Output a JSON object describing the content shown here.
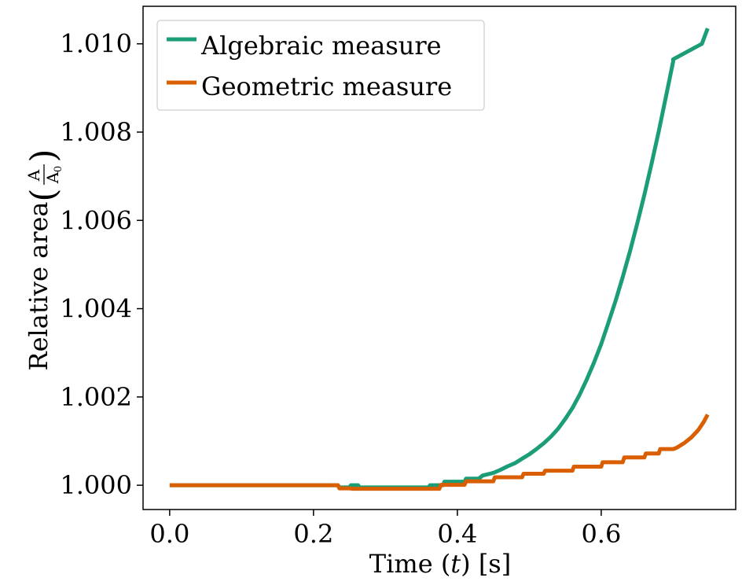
{
  "chart_data": {
    "type": "line",
    "xlabel": "Time (t) [s]",
    "xlabel_parts": {
      "prefix": "Time (",
      "var": "t",
      "suffix": ") [s]"
    },
    "ylabel": "Relative area (A/A0)",
    "ylabel_parts": {
      "prefix": "Relative area ",
      "num": "A",
      "den_base": "A",
      "den_sub": "0"
    },
    "xlim": [
      -0.037,
      0.787
    ],
    "ylim": [
      0.99945,
      1.01085
    ],
    "xticks": [
      0.0,
      0.2,
      0.4,
      0.6
    ],
    "xtick_labels": [
      "0.0",
      "0.2",
      "0.4",
      "0.6"
    ],
    "yticks": [
      1.0,
      1.002,
      1.004,
      1.006,
      1.008,
      1.01
    ],
    "ytick_labels": [
      "1.000",
      "1.002",
      "1.004",
      "1.006",
      "1.008",
      "1.010"
    ],
    "grid": false,
    "legend_position": "top-left",
    "series": [
      {
        "name": "Algebraic measure",
        "color": "#1b9e77",
        "points": [
          [
            0.0,
            1.0
          ],
          [
            0.234,
            1.0
          ],
          [
            0.236,
            0.99995
          ],
          [
            0.25,
            0.99995
          ],
          [
            0.252,
            1.0
          ],
          [
            0.262,
            1.0
          ],
          [
            0.264,
            0.99995
          ],
          [
            0.36,
            0.99995
          ],
          [
            0.362,
            1.0
          ],
          [
            0.38,
            1.0
          ],
          [
            0.382,
            1.00008
          ],
          [
            0.41,
            1.00008
          ],
          [
            0.412,
            1.00015
          ],
          [
            0.43,
            1.00015
          ],
          [
            0.435,
            1.00022
          ],
          [
            0.45,
            1.00028
          ],
          [
            0.46,
            1.00035
          ],
          [
            0.47,
            1.00043
          ],
          [
            0.48,
            1.0005
          ],
          [
            0.49,
            1.0006
          ],
          [
            0.5,
            1.0007
          ],
          [
            0.51,
            1.00082
          ],
          [
            0.52,
            1.00095
          ],
          [
            0.53,
            1.0011
          ],
          [
            0.54,
            1.00128
          ],
          [
            0.55,
            1.0015
          ],
          [
            0.56,
            1.00175
          ],
          [
            0.57,
            1.00205
          ],
          [
            0.58,
            1.0024
          ],
          [
            0.59,
            1.00278
          ],
          [
            0.6,
            1.0032
          ],
          [
            0.61,
            1.00368
          ],
          [
            0.62,
            1.00418
          ],
          [
            0.63,
            1.00472
          ],
          [
            0.64,
            1.0053
          ],
          [
            0.65,
            1.00592
          ],
          [
            0.66,
            1.00658
          ],
          [
            0.67,
            1.00728
          ],
          [
            0.68,
            1.00802
          ],
          [
            0.69,
            1.0088
          ],
          [
            0.7,
            1.0096
          ],
          [
            0.7,
            1.00965
          ],
          [
            0.74,
            1.01
          ],
          [
            0.748,
            1.01035
          ]
        ]
      },
      {
        "name": "Geometric measure",
        "color": "#d95f02",
        "points": [
          [
            0.0,
            1.0
          ],
          [
            0.234,
            1.0
          ],
          [
            0.236,
            0.99993
          ],
          [
            0.25,
            0.99993
          ],
          [
            0.255,
            0.99992
          ],
          [
            0.375,
            0.99992
          ],
          [
            0.377,
            1.00001
          ],
          [
            0.41,
            1.00001
          ],
          [
            0.412,
            1.00009
          ],
          [
            0.45,
            1.00009
          ],
          [
            0.452,
            1.00018
          ],
          [
            0.49,
            1.00018
          ],
          [
            0.492,
            1.00026
          ],
          [
            0.52,
            1.00026
          ],
          [
            0.522,
            1.00033
          ],
          [
            0.56,
            1.00033
          ],
          [
            0.562,
            1.00042
          ],
          [
            0.6,
            1.00042
          ],
          [
            0.602,
            1.00052
          ],
          [
            0.63,
            1.00052
          ],
          [
            0.632,
            1.00063
          ],
          [
            0.66,
            1.00063
          ],
          [
            0.662,
            1.00072
          ],
          [
            0.68,
            1.00072
          ],
          [
            0.682,
            1.00082
          ],
          [
            0.7,
            1.00082
          ],
          [
            0.705,
            1.00085
          ],
          [
            0.715,
            1.00095
          ],
          [
            0.725,
            1.00108
          ],
          [
            0.735,
            1.00125
          ],
          [
            0.742,
            1.00142
          ],
          [
            0.748,
            1.0016
          ]
        ]
      }
    ]
  }
}
